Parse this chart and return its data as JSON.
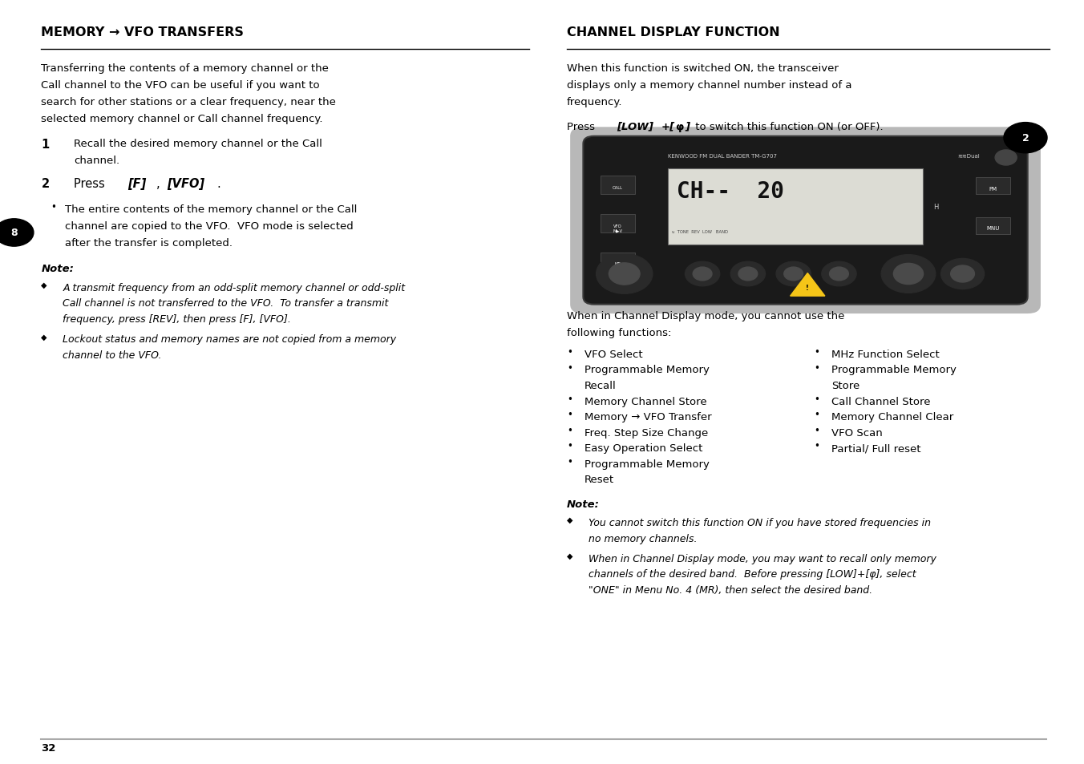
{
  "bg_color": "#ffffff",
  "page_number": "32",
  "left_title": "MEMORY → VFO TRANSFERS",
  "right_title": "CHANNEL DISPLAY FUNCTION",
  "left_body": "Transferring the contents of a memory channel or the\nCall channel to the VFO can be useful if you want to\nsearch for other stations or a clear frequency, near the\nselected memory channel or Call channel frequency.",
  "step1_num": "1",
  "step1_text": "Recall the desired memory channel or the Call\nchannel.",
  "step2_num": "2",
  "bullet1": "The entire contents of the memory channel or the Call\nchannel are copied to the VFO.  VFO mode is selected\nafter the transfer is completed.",
  "note_label": "Note:",
  "note1": "A transmit frequency from an odd-split memory channel or odd-split\nCall channel is not transferred to the VFO.  To transfer a transmit\nfrequency, press [REV], then press [F], [VFO].",
  "note2": "Lockout status and memory names are not copied from a memory\nchannel to the VFO.",
  "right_body": "When this function is switched ON, the transceiver\ndisplays only a memory channel number instead of a\nfrequency.",
  "when_text": "When in Channel Display mode, you cannot use the\nfollowing functions:",
  "left_functions": [
    "VFO Select",
    "Programmable Memory\nRecall",
    "Memory Channel Store",
    "Memory → VFO Transfer",
    "Freq. Step Size Change",
    "Easy Operation Select",
    "Programmable Memory\nReset"
  ],
  "right_functions": [
    "MHz Function Select",
    "Programmable Memory\nStore",
    "Call Channel Store",
    "Memory Channel Clear",
    "VFO Scan",
    "Partial/ Full reset"
  ],
  "right_note1": "You cannot switch this function ON if you have stored frequencies in\nno memory channels.",
  "right_note2": "When in Channel Display mode, you may want to recall only memory\nchannels of the desired band.  Before pressing [LOW]+[φ], select\n\"ONE\" in Menu No. 4 (MR), then select the desired band.",
  "title_fontsize": 11.5,
  "body_fontsize": 9.5,
  "note_fontsize": 9.0
}
